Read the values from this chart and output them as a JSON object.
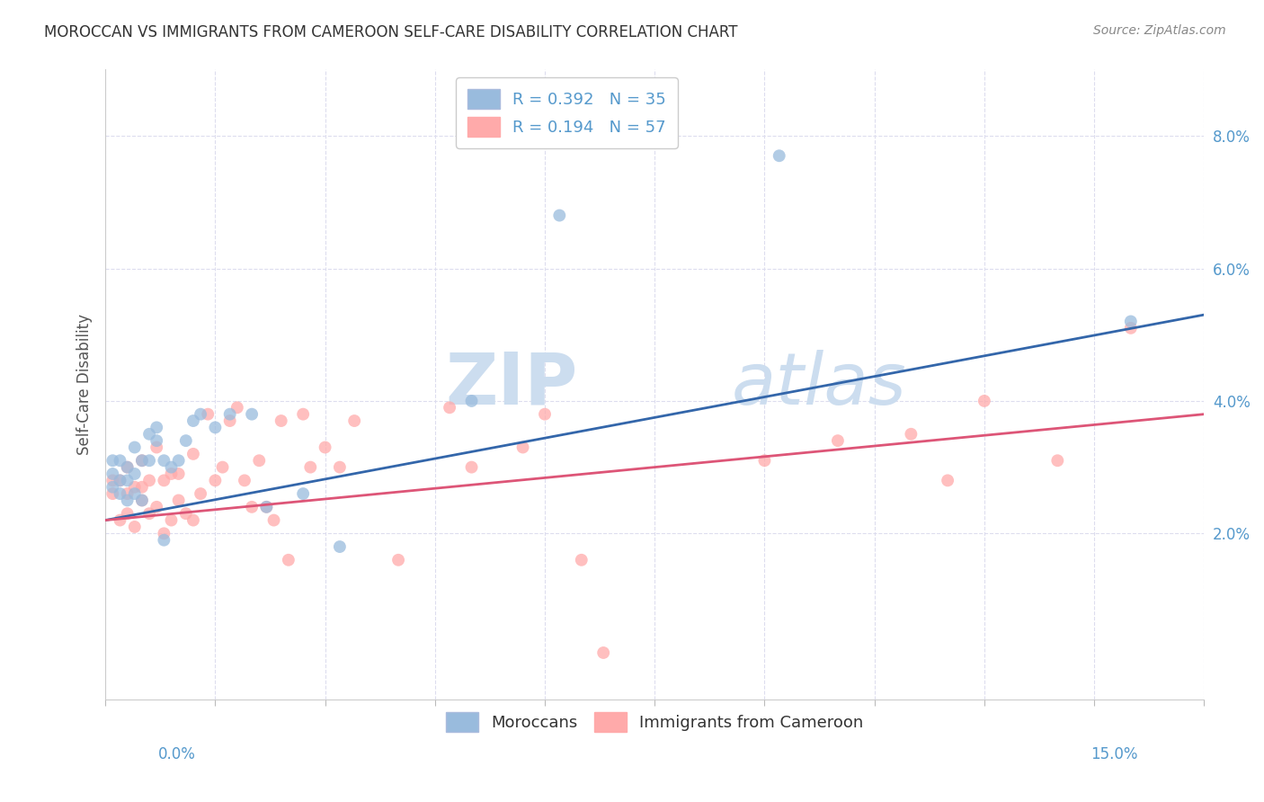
{
  "title": "MOROCCAN VS IMMIGRANTS FROM CAMEROON SELF-CARE DISABILITY CORRELATION CHART",
  "source": "Source: ZipAtlas.com",
  "ylabel": "Self-Care Disability",
  "legend1_r": "0.392",
  "legend1_n": "35",
  "legend2_r": "0.194",
  "legend2_n": "57",
  "legend_label1": "Moroccans",
  "legend_label2": "Immigrants from Cameroon",
  "xlim": [
    0.0,
    0.15
  ],
  "ylim": [
    -0.005,
    0.09
  ],
  "y_ticks": [
    0.02,
    0.04,
    0.06,
    0.08
  ],
  "y_tick_labels": [
    "2.0%",
    "4.0%",
    "6.0%",
    "8.0%"
  ],
  "x_ticks": [
    0.0,
    0.015,
    0.03,
    0.045,
    0.06,
    0.075,
    0.09,
    0.105,
    0.12,
    0.135,
    0.15
  ],
  "blue_color": "#99BBDD",
  "pink_color": "#FFAAAA",
  "blue_line_color": "#3366AA",
  "pink_line_color": "#DD5577",
  "tick_label_color": "#5599CC",
  "moroccans_x": [
    0.001,
    0.001,
    0.001,
    0.002,
    0.002,
    0.002,
    0.003,
    0.003,
    0.003,
    0.004,
    0.004,
    0.004,
    0.005,
    0.005,
    0.006,
    0.006,
    0.007,
    0.007,
    0.008,
    0.008,
    0.009,
    0.01,
    0.011,
    0.012,
    0.013,
    0.015,
    0.017,
    0.02,
    0.022,
    0.027,
    0.032,
    0.05,
    0.062,
    0.092,
    0.14
  ],
  "moroccans_y": [
    0.027,
    0.029,
    0.031,
    0.026,
    0.028,
    0.031,
    0.025,
    0.028,
    0.03,
    0.026,
    0.029,
    0.033,
    0.025,
    0.031,
    0.031,
    0.035,
    0.034,
    0.036,
    0.019,
    0.031,
    0.03,
    0.031,
    0.034,
    0.037,
    0.038,
    0.036,
    0.038,
    0.038,
    0.024,
    0.026,
    0.018,
    0.04,
    0.068,
    0.077,
    0.052
  ],
  "cameroon_x": [
    0.001,
    0.001,
    0.002,
    0.002,
    0.003,
    0.003,
    0.003,
    0.004,
    0.004,
    0.005,
    0.005,
    0.005,
    0.006,
    0.006,
    0.007,
    0.007,
    0.008,
    0.008,
    0.009,
    0.009,
    0.01,
    0.01,
    0.011,
    0.012,
    0.012,
    0.013,
    0.014,
    0.015,
    0.016,
    0.017,
    0.018,
    0.019,
    0.02,
    0.021,
    0.022,
    0.023,
    0.024,
    0.025,
    0.027,
    0.028,
    0.03,
    0.032,
    0.034,
    0.04,
    0.047,
    0.05,
    0.057,
    0.06,
    0.065,
    0.068,
    0.09,
    0.1,
    0.11,
    0.115,
    0.12,
    0.13,
    0.14
  ],
  "cameroon_y": [
    0.026,
    0.028,
    0.022,
    0.028,
    0.023,
    0.026,
    0.03,
    0.027,
    0.021,
    0.025,
    0.027,
    0.031,
    0.023,
    0.028,
    0.024,
    0.033,
    0.028,
    0.02,
    0.022,
    0.029,
    0.025,
    0.029,
    0.023,
    0.032,
    0.022,
    0.026,
    0.038,
    0.028,
    0.03,
    0.037,
    0.039,
    0.028,
    0.024,
    0.031,
    0.024,
    0.022,
    0.037,
    0.016,
    0.038,
    0.03,
    0.033,
    0.03,
    0.037,
    0.016,
    0.039,
    0.03,
    0.033,
    0.038,
    0.016,
    0.002,
    0.031,
    0.034,
    0.035,
    0.028,
    0.04,
    0.031,
    0.051
  ],
  "blue_trend_x": [
    0.0,
    0.15
  ],
  "blue_trend_y": [
    0.022,
    0.053
  ],
  "pink_trend_y": [
    0.022,
    0.038
  ],
  "watermark_zip": "ZIP",
  "watermark_atlas": "atlas",
  "watermark_color": "#CCDDEF",
  "background_color": "#FFFFFF",
  "grid_color": "#DDDDEE",
  "grid_style": "--"
}
